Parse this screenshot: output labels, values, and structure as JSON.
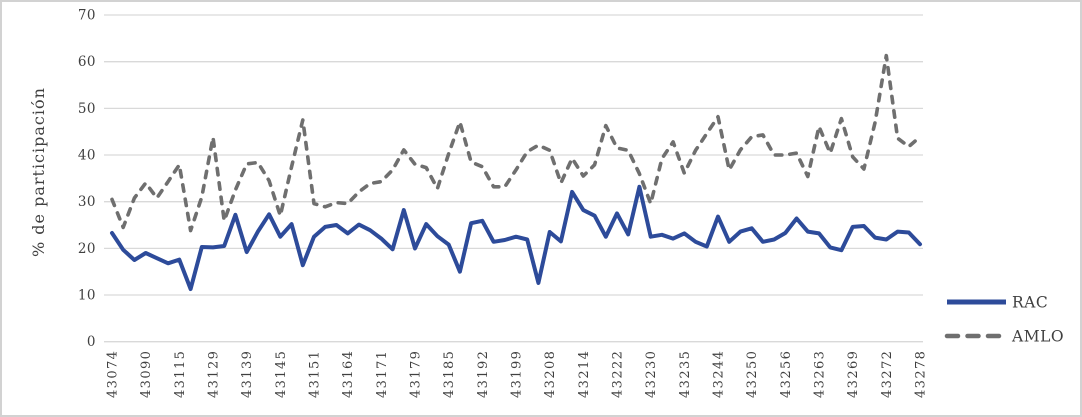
{
  "figure": {
    "background": "#ffffff",
    "border_color": "#d2d2d2",
    "gridline_color": "#d9d9d9",
    "text_color": "#404040"
  },
  "y_axis": {
    "title": "% de participación",
    "tick_labels": [
      "0",
      "10",
      "20",
      "30",
      "40",
      "50",
      "60",
      "70"
    ],
    "min": 0,
    "max": 70,
    "step": 10
  },
  "x_axis": {
    "labels": [
      "43074",
      "43090",
      "43115",
      "43129",
      "43139",
      "43145",
      "43151",
      "43164",
      "43171",
      "43179",
      "43185",
      "43192",
      "43199",
      "43208",
      "43214",
      "43222",
      "43230",
      "43235",
      "43244",
      "43250",
      "43256",
      "43263",
      "43269",
      "43272",
      "43278"
    ],
    "label_every_n_points": 3,
    "rotation": "vertical"
  },
  "legend": {
    "position": "right",
    "items": [
      {
        "label": "RAC",
        "color": "#2d4b9a",
        "style": "solid"
      },
      {
        "label": "AMLO",
        "color": "#6f6f6f",
        "style": "dashed"
      }
    ]
  },
  "chart_data": {
    "type": "line",
    "title": "",
    "xlabel": "",
    "ylabel": "% de participación",
    "ylim": [
      0,
      70
    ],
    "grid": "horizontal",
    "legend_position": "right",
    "n_points": 73,
    "x_tick_labels": [
      "43074",
      "43090",
      "43115",
      "43129",
      "43139",
      "43145",
      "43151",
      "43164",
      "43171",
      "43179",
      "43185",
      "43192",
      "43199",
      "43208",
      "43214",
      "43222",
      "43230",
      "43235",
      "43244",
      "43250",
      "43256",
      "43263",
      "43269",
      "43272",
      "43278"
    ],
    "x_tick_every": 3,
    "series": [
      {
        "name": "RAC",
        "color": "#2d4b9a",
        "dash": false,
        "values": [
          23.3,
          19.7,
          17.5,
          19.0,
          17.9,
          16.8,
          17.6,
          11.3,
          20.3,
          20.2,
          20.5,
          27.2,
          19.2,
          23.6,
          27.3,
          22.5,
          25.2,
          16.4,
          22.5,
          24.6,
          25.0,
          23.2,
          25.1,
          23.9,
          22.1,
          19.8,
          28.2,
          20.0,
          25.2,
          22.6,
          20.8,
          15.0,
          25.4,
          25.9,
          21.4,
          21.8,
          22.5,
          21.9,
          12.6,
          23.5,
          21.5,
          32.1,
          28.2,
          27.0,
          22.5,
          27.5,
          23.0,
          33.2,
          22.5,
          22.9,
          22.1,
          23.2,
          21.4,
          20.4,
          26.8,
          21.4,
          23.6,
          24.3,
          21.4,
          21.9,
          23.3,
          26.4,
          23.6,
          23.2,
          20.2,
          19.6,
          24.6,
          24.8,
          22.3,
          21.9,
          23.6,
          23.4,
          20.9
        ]
      },
      {
        "name": "AMLO",
        "color": "#6f6f6f",
        "dash": true,
        "values": [
          30.5,
          24.5,
          30.8,
          34.0,
          30.8,
          34.3,
          37.9,
          23.8,
          31.0,
          43.8,
          25.9,
          32.5,
          38.1,
          38.4,
          34.5,
          27.0,
          37.5,
          47.5,
          29.6,
          28.9,
          29.8,
          29.6,
          32.1,
          33.9,
          34.3,
          36.8,
          41.1,
          38.0,
          37.3,
          32.8,
          40.3,
          47.1,
          38.5,
          37.5,
          33.2,
          33.2,
          36.8,
          40.7,
          42.1,
          41.0,
          34.0,
          39.3,
          35.5,
          37.9,
          46.3,
          41.5,
          41.0,
          36.0,
          29.6,
          39.2,
          42.8,
          36.1,
          41.0,
          44.6,
          48.2,
          36.8,
          41.1,
          43.9,
          44.3,
          40.0,
          40.0,
          40.4,
          35.4,
          46.1,
          40.4,
          47.8,
          39.6,
          37.0,
          47.0,
          61.3,
          43.6,
          41.8,
          43.9
        ]
      }
    ]
  }
}
